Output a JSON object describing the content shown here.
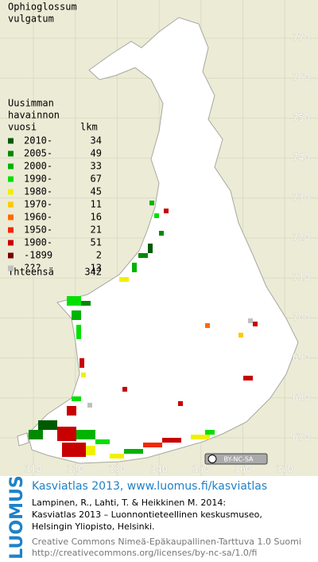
{
  "title_lines": [
    "Ophioglossum",
    "vulgatum"
  ],
  "legend": {
    "heading_lines": [
      "Uusimman",
      "havainnon",
      "vuosi"
    ],
    "count_header": "lkm",
    "items": [
      {
        "label": "2010-",
        "count": 34,
        "color": "#005a00"
      },
      {
        "label": "2005-",
        "count": 49,
        "color": "#008a00"
      },
      {
        "label": "2000-",
        "count": 33,
        "color": "#00b400"
      },
      {
        "label": "1990-",
        "count": 67,
        "color": "#00e000"
      },
      {
        "label": "1980-",
        "count": 45,
        "color": "#f0f000"
      },
      {
        "label": "1970-",
        "count": 11,
        "color": "#ffc800"
      },
      {
        "label": "1960-",
        "count": 16,
        "color": "#ff6a00"
      },
      {
        "label": "1950-",
        "count": 21,
        "color": "#f02800"
      },
      {
        "label": "1900-",
        "count": 51,
        "color": "#c80000"
      },
      {
        "label": "-1899",
        "count": 2,
        "color": "#7a0000"
      },
      {
        "label": "???",
        "count": 13,
        "color": "#c0c0c0"
      }
    ],
    "total": {
      "label": "Yhteensä",
      "count": 342
    }
  },
  "map": {
    "north_ticks": [
      770,
      760,
      750,
      740,
      730,
      720,
      710,
      700,
      690,
      680,
      670
    ],
    "east_ticks": [
      310,
      320,
      330,
      340,
      350,
      360,
      370
    ],
    "license_badge": "BY-NC-SA"
  },
  "footer": {
    "logo": "LUOMUS",
    "title": "Kasviatlas 2013, www.luomus.fi/kasviatlas",
    "citation_lines": [
      "Lampinen, R., Lahti, T. & Heikkinen M. 2014:",
      "Kasviatlas 2013 – Luonnontieteellinen keskusmuseo,",
      "Helsingin Yliopisto, Helsinki."
    ],
    "license_lines": [
      "Creative Commons Nimeä-Epäkaupallinen-Tarttuva 1.0 Suomi",
      "http://creativecommons.org/licenses/by-nc-sa/1.0/fi"
    ]
  }
}
